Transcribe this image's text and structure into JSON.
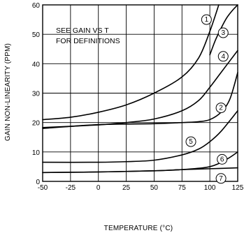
{
  "chart_data": {
    "type": "line",
    "title": "",
    "xlabel": "TEMPERATURE (°C)",
    "ylabel": "GAIN NON-LINEARITY (PPM)",
    "xlim": [
      -50,
      125
    ],
    "ylim": [
      0,
      60
    ],
    "x_ticks": [
      "-50",
      "-25",
      "0",
      "25",
      "50",
      "75",
      "100",
      "125"
    ],
    "y_ticks": [
      "0",
      "10",
      "20",
      "30",
      "40",
      "50",
      "60"
    ],
    "grid": true,
    "annotation": [
      "SEE GAIN VS T",
      "FOR DEFINITIONS"
    ],
    "series": [
      {
        "label": "1",
        "x": [
          -50,
          -25,
          0,
          25,
          50,
          75,
          90,
          100,
          108
        ],
        "y": [
          21,
          21.8,
          23.5,
          26,
          30,
          35.5,
          42,
          51,
          60
        ]
      },
      {
        "label": "2",
        "x": [
          -50,
          0,
          50,
          75,
          90,
          100,
          110,
          118,
          125
        ],
        "y": [
          18,
          19.3,
          19.6,
          20,
          20.3,
          21,
          23.5,
          28,
          37
        ]
      },
      {
        "label": "3",
        "x": [
          100,
          105,
          110,
          115,
          120,
          125
        ],
        "y": [
          43,
          48,
          52,
          55.5,
          58,
          60
        ]
      },
      {
        "label": "4",
        "x": [
          -50,
          0,
          25,
          50,
          75,
          90,
          100,
          110,
          125
        ],
        "y": [
          18.3,
          19.2,
          20,
          21.2,
          24,
          27.5,
          32,
          37,
          44.5
        ]
      },
      {
        "label": "5",
        "x": [
          -50,
          0,
          25,
          50,
          75,
          90,
          100,
          110,
          125
        ],
        "y": [
          6.5,
          6.5,
          6.7,
          7.2,
          9,
          11,
          13.5,
          17,
          24
        ]
      },
      {
        "label": "6",
        "x": [
          -50,
          0,
          50,
          75,
          100,
          115,
          125
        ],
        "y": [
          3,
          3.2,
          3.6,
          4,
          5,
          7.5,
          10
        ]
      },
      {
        "label": "7",
        "x": [
          -50,
          0,
          50,
          75,
          100,
          125
        ],
        "y": [
          3,
          3.2,
          3.6,
          4,
          4.3,
          4.6
        ]
      }
    ],
    "markers": [
      {
        "label": "1",
        "x": 97,
        "y": 55
      },
      {
        "label": "3",
        "x": 112,
        "y": 50.5
      },
      {
        "label": "4",
        "x": 112,
        "y": 42.5
      },
      {
        "label": "2",
        "x": 110,
        "y": 25
      },
      {
        "label": "5",
        "x": 83,
        "y": 13.5
      },
      {
        "label": "6",
        "x": 111,
        "y": 7.5
      },
      {
        "label": "7",
        "x": 110,
        "y": 1
      }
    ]
  }
}
